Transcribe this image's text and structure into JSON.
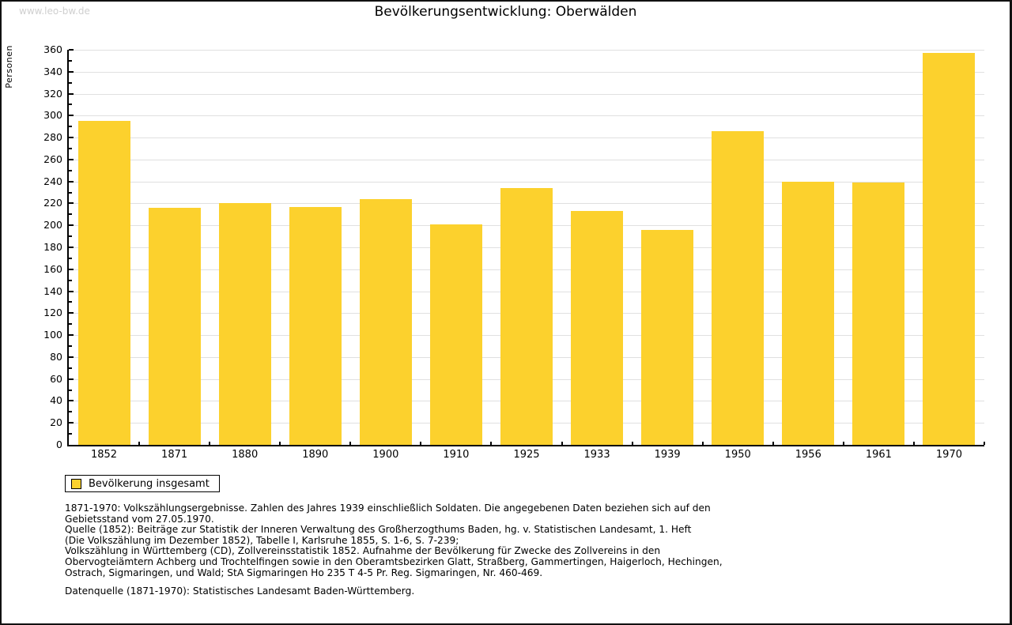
{
  "page": {
    "watermark": "www.leo-bw.de",
    "title": "Bevölkerungsentwicklung: Oberwälden"
  },
  "legend": {
    "label": "Bevölkerung insgesamt",
    "swatch_color": "#fcd12d"
  },
  "footnotes": {
    "lines": [
      "1871-1970: Volkszählungsergebnisse. Zahlen des Jahres 1939 einschließlich Soldaten. Die angegebenen Daten beziehen sich auf den",
      "Gebietsstand vom 27.05.1970.",
      "Quelle (1852): Beiträge zur Statistik der Inneren Verwaltung des Großherzogthums Baden, hg. v. Statistischen Landesamt, 1. Heft",
      "(Die Volkszählung im Dezember 1852), Tabelle I, Karlsruhe 1855, S. 1-6, S. 7-239;",
      "Volkszählung in Württemberg (CD), Zollvereinsstatistik 1852. Aufnahme der Bevölkerung für Zwecke des Zollvereins in den",
      "Obervogteiämtern Achberg und Trochtelfingen sowie in den Oberamtsbezirken Glatt, Straßberg, Gammertingen, Haigerloch, Hechingen,",
      "Ostrach, Sigmaringen, und Wald; StA Sigmaringen Ho 235 T 4-5 Pr. Reg. Sigmaringen, Nr. 460-469."
    ],
    "datasource": "Datenquelle (1871-1970): Statistisches Landesamt Baden-Württemberg."
  },
  "chart_data": {
    "type": "bar",
    "title": "Bevölkerungsentwicklung: Oberwälden",
    "categories": [
      "1852",
      "1871",
      "1880",
      "1890",
      "1900",
      "1910",
      "1925",
      "1933",
      "1939",
      "1950",
      "1956",
      "1961",
      "1970"
    ],
    "values": [
      295,
      216,
      220,
      217,
      224,
      201,
      234,
      213,
      196,
      286,
      240,
      239,
      357
    ],
    "series_name": "Bevölkerung insgesamt",
    "xlabel": "",
    "ylabel": "Personen",
    "ylim": [
      0,
      360
    ],
    "ytick_step": 20,
    "yminor_step": 10,
    "grid": true,
    "bar_color": "#fcd12d",
    "gridline_color": "#e0e0e0",
    "legend_position": "bottom-left"
  }
}
